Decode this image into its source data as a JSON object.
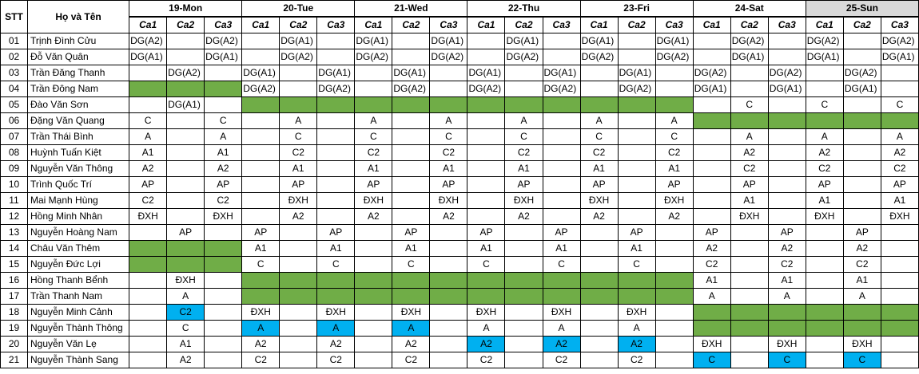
{
  "header": {
    "stt_label": "STT",
    "name_label": "Họ và Tên",
    "days": [
      "19-Mon",
      "20-Tue",
      "21-Wed",
      "22-Thu",
      "23-Fri",
      "24-Sat",
      "25-Sun"
    ],
    "shifts": [
      "Ca1",
      "Ca2",
      "Ca3"
    ]
  },
  "colors": {
    "green": "#70ad47",
    "blue": "#00b0f0",
    "sunday_header": "#d9d9d9"
  },
  "rows": [
    {
      "stt": "01",
      "name": "Trịnh Đình Cửu",
      "cells": [
        "DG(A2)",
        "",
        "DG(A2)",
        "",
        "DG(A1)",
        "",
        "DG(A1)",
        "",
        "DG(A1)",
        "",
        "DG(A1)",
        "",
        "DG(A1)",
        "",
        "DG(A1)",
        "",
        "DG(A2)",
        "",
        "DG(A2)",
        "",
        "DG(A2)"
      ],
      "green": [],
      "blue": []
    },
    {
      "stt": "02",
      "name": "Đỗ Văn Quân",
      "cells": [
        "DG(A1)",
        "",
        "DG(A1)",
        "",
        "DG(A2)",
        "",
        "DG(A2)",
        "",
        "DG(A2)",
        "",
        "DG(A2)",
        "",
        "DG(A2)",
        "",
        "DG(A2)",
        "",
        "DG(A1)",
        "",
        "DG(A1)",
        "",
        "DG(A1)"
      ],
      "green": [],
      "blue": []
    },
    {
      "stt": "03",
      "name": "Trần Đăng Thanh",
      "cells": [
        "",
        "DG(A2)",
        "",
        "DG(A1)",
        "",
        "DG(A1)",
        "",
        "DG(A1)",
        "",
        "DG(A1)",
        "",
        "DG(A1)",
        "",
        "DG(A1)",
        "",
        "DG(A2)",
        "",
        "DG(A2)",
        "",
        "DG(A2)",
        ""
      ],
      "green": [],
      "blue": []
    },
    {
      "stt": "04",
      "name": "Trần Đông Nam",
      "cells": [
        "",
        "",
        "",
        "DG(A2)",
        "",
        "DG(A2)",
        "",
        "DG(A2)",
        "",
        "DG(A2)",
        "",
        "DG(A2)",
        "",
        "DG(A2)",
        "",
        "DG(A1)",
        "",
        "DG(A1)",
        "",
        "DG(A1)",
        ""
      ],
      "green": [
        0,
        1,
        2
      ],
      "blue": []
    },
    {
      "stt": "05",
      "name": "Đào Văn Sơn",
      "cells": [
        "",
        "DG(A1)",
        "",
        "",
        "",
        "",
        "",
        "",
        "",
        "",
        "",
        "",
        "",
        "",
        "",
        "",
        "C",
        "",
        "C",
        "",
        "C"
      ],
      "green": [
        3,
        4,
        5,
        6,
        7,
        8,
        9,
        10,
        11,
        12,
        13,
        14
      ],
      "blue": []
    },
    {
      "stt": "06",
      "name": "Đặng Văn Quang",
      "cells": [
        "C",
        "",
        "C",
        "",
        "A",
        "",
        "A",
        "",
        "A",
        "",
        "A",
        "",
        "A",
        "",
        "A",
        "",
        "",
        "",
        "",
        "",
        ""
      ],
      "green": [
        15,
        16,
        17,
        18,
        19,
        20
      ],
      "blue": []
    },
    {
      "stt": "07",
      "name": "Trần Thái Bình",
      "cells": [
        "A",
        "",
        "A",
        "",
        "C",
        "",
        "C",
        "",
        "C",
        "",
        "C",
        "",
        "C",
        "",
        "C",
        "",
        "A",
        "",
        "A",
        "",
        "A"
      ],
      "green": [],
      "blue": []
    },
    {
      "stt": "08",
      "name": "Huỳnh Tuấn Kiệt",
      "cells": [
        "A1",
        "",
        "A1",
        "",
        "C2",
        "",
        "C2",
        "",
        "C2",
        "",
        "C2",
        "",
        "C2",
        "",
        "C2",
        "",
        "A2",
        "",
        "A2",
        "",
        "A2"
      ],
      "green": [],
      "blue": []
    },
    {
      "stt": "09",
      "name": "Nguyễn Văn Thông",
      "cells": [
        "A2",
        "",
        "A2",
        "",
        "A1",
        "",
        "A1",
        "",
        "A1",
        "",
        "A1",
        "",
        "A1",
        "",
        "A1",
        "",
        "C2",
        "",
        "C2",
        "",
        "C2"
      ],
      "green": [],
      "blue": []
    },
    {
      "stt": "10",
      "name": "Trình Quốc Trí",
      "cells": [
        "AP",
        "",
        "AP",
        "",
        "AP",
        "",
        "AP",
        "",
        "AP",
        "",
        "AP",
        "",
        "AP",
        "",
        "AP",
        "",
        "AP",
        "",
        "AP",
        "",
        "AP"
      ],
      "green": [],
      "blue": []
    },
    {
      "stt": "11",
      "name": "Mai Mạnh Hùng",
      "cells": [
        "C2",
        "",
        "C2",
        "",
        "ĐXH",
        "",
        "ĐXH",
        "",
        "ĐXH",
        "",
        "ĐXH",
        "",
        "ĐXH",
        "",
        "ĐXH",
        "",
        "A1",
        "",
        "A1",
        "",
        "A1"
      ],
      "green": [],
      "blue": []
    },
    {
      "stt": "12",
      "name": "Hồng Minh Nhân",
      "cells": [
        "ĐXH",
        "",
        "ĐXH",
        "",
        "A2",
        "",
        "A2",
        "",
        "A2",
        "",
        "A2",
        "",
        "A2",
        "",
        "A2",
        "",
        "ĐXH",
        "",
        "ĐXH",
        "",
        "ĐXH"
      ],
      "green": [],
      "blue": []
    },
    {
      "stt": "13",
      "name": "Nguyễn Hoàng Nam",
      "cells": [
        "",
        "AP",
        "",
        "AP",
        "",
        "AP",
        "",
        "AP",
        "",
        "AP",
        "",
        "AP",
        "",
        "AP",
        "",
        "AP",
        "",
        "AP",
        "",
        "AP",
        ""
      ],
      "green": [],
      "blue": []
    },
    {
      "stt": "14",
      "name": "Châu Văn Thêm",
      "cells": [
        "",
        "",
        "",
        "A1",
        "",
        "A1",
        "",
        "A1",
        "",
        "A1",
        "",
        "A1",
        "",
        "A1",
        "",
        "A2",
        "",
        "A2",
        "",
        "A2",
        ""
      ],
      "green": [
        0,
        1,
        2
      ],
      "blue": []
    },
    {
      "stt": "15",
      "name": "Nguyễn Đức Lợi",
      "cells": [
        "",
        "",
        "",
        "C",
        "",
        "C",
        "",
        "C",
        "",
        "C",
        "",
        "C",
        "",
        "C",
        "",
        "C2",
        "",
        "C2",
        "",
        "C2",
        ""
      ],
      "green": [
        0,
        1,
        2
      ],
      "blue": []
    },
    {
      "stt": "16",
      "name": "Hồng Thanh Bểnh",
      "cells": [
        "",
        "ĐXH",
        "",
        "",
        "",
        "",
        "",
        "",
        "",
        "",
        "",
        "",
        "",
        "",
        "",
        "A1",
        "",
        "A1",
        "",
        "A1",
        ""
      ],
      "green": [
        3,
        4,
        5,
        6,
        7,
        8,
        9,
        10,
        11,
        12,
        13,
        14
      ],
      "blue": []
    },
    {
      "stt": "17",
      "name": "Trần Thanh Nam",
      "cells": [
        "",
        "A",
        "",
        "",
        "",
        "",
        "",
        "",
        "",
        "",
        "",
        "",
        "",
        "",
        "",
        "A",
        "",
        "A",
        "",
        "A",
        ""
      ],
      "green": [
        3,
        4,
        5,
        6,
        7,
        8,
        9,
        10,
        11,
        12,
        13,
        14
      ],
      "blue": []
    },
    {
      "stt": "18",
      "name": "Nguyễn Minh Cảnh",
      "cells": [
        "",
        "C2",
        "",
        "ĐXH",
        "",
        "ĐXH",
        "",
        "ĐXH",
        "",
        "ĐXH",
        "",
        "ĐXH",
        "",
        "ĐXH",
        "",
        "",
        "",
        "",
        "",
        "",
        ""
      ],
      "green": [
        15,
        16,
        17,
        18,
        19,
        20
      ],
      "blue": [
        1
      ]
    },
    {
      "stt": "19",
      "name": "Nguyễn Thành Thông",
      "cells": [
        "",
        "C",
        "",
        "A",
        "",
        "A",
        "",
        "A",
        "",
        "A",
        "",
        "A",
        "",
        "A",
        "",
        "",
        "",
        "",
        "",
        "",
        ""
      ],
      "green": [
        15,
        16,
        17,
        18,
        19,
        20
      ],
      "blue": [
        3,
        5,
        7
      ]
    },
    {
      "stt": "20",
      "name": "Nguyễn Văn Lẹ",
      "cells": [
        "",
        "A1",
        "",
        "A2",
        "",
        "A2",
        "",
        "A2",
        "",
        "A2",
        "",
        "A2",
        "",
        "A2",
        "",
        "ĐXH",
        "",
        "ĐXH",
        "",
        "ĐXH",
        ""
      ],
      "green": [],
      "blue": [
        9,
        11,
        13
      ]
    },
    {
      "stt": "21",
      "name": "Nguyễn Thành Sang",
      "cells": [
        "",
        "A2",
        "",
        "C2",
        "",
        "C2",
        "",
        "C2",
        "",
        "C2",
        "",
        "C2",
        "",
        "C2",
        "",
        "C",
        "",
        "C",
        "",
        "C",
        ""
      ],
      "green": [],
      "blue": [
        15,
        17,
        19
      ]
    }
  ]
}
